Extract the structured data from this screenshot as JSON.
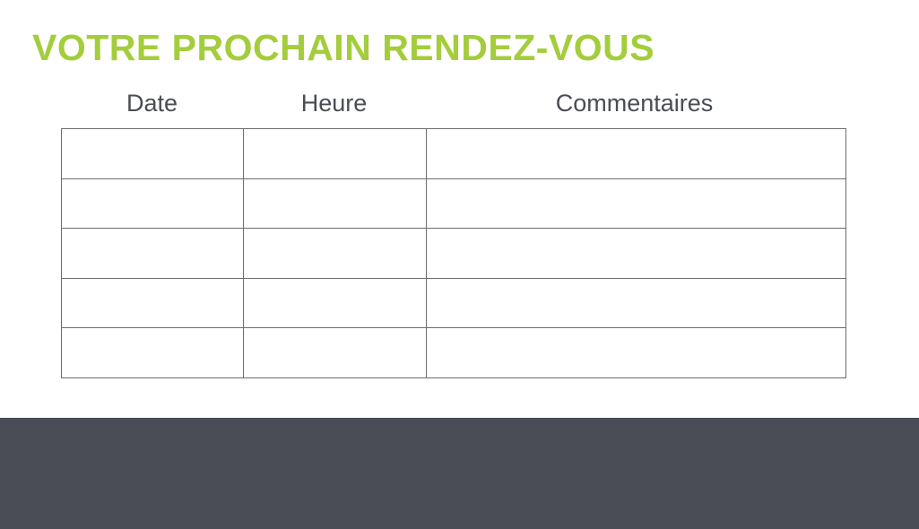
{
  "title": "VOTRE PROCHAIN RENDEZ-VOUS",
  "columns": [
    "Date",
    "Heure",
    "Commentaires"
  ],
  "rows": 5,
  "colors": {
    "accent": "#a4cd3c",
    "footer": "#4a4d56"
  }
}
